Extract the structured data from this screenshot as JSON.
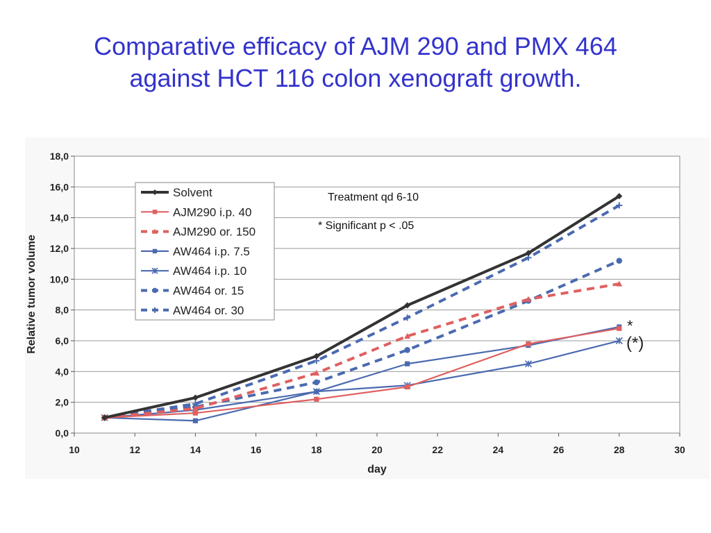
{
  "slide": {
    "title_line1": "Comparative efficacy of AJM 290 and PMX 464",
    "title_line2": "against HCT 116 colon xenograft growth."
  },
  "annotations": {
    "treatment": "Treatment qd 6-10",
    "significance": "* Significant p < .05",
    "star_upper": "*",
    "star_lower": "(*)"
  },
  "chart_data": {
    "type": "line",
    "xlabel": "day",
    "ylabel": "Relative tumor volume",
    "xlim": [
      10,
      30
    ],
    "ylim": [
      0,
      18
    ],
    "xticks": [
      10,
      12,
      14,
      16,
      18,
      20,
      22,
      24,
      26,
      28,
      30
    ],
    "xtick_labels": [
      "10",
      "12",
      "14",
      "16",
      "18",
      "20",
      "22",
      "24",
      "26",
      "28",
      "30"
    ],
    "yticks": [
      0,
      2,
      4,
      6,
      8,
      10,
      12,
      14,
      16,
      18
    ],
    "ytick_labels": [
      "0,0",
      "2,0",
      "4,0",
      "6,0",
      "8,0",
      "10,0",
      "12,0",
      "14,0",
      "16,0",
      "18,0"
    ],
    "grid": "horizontal",
    "legend_position": "top-left",
    "series": [
      {
        "name": "Solvent",
        "color": "#333333",
        "dash": "solid",
        "marker": "diamond",
        "thick": true,
        "x": [
          11,
          14,
          18,
          21,
          25,
          28
        ],
        "y": [
          1.0,
          2.3,
          5.0,
          8.3,
          11.7,
          15.4
        ]
      },
      {
        "name": "AJM290 i.p. 40",
        "color": "#e06060",
        "dash": "solid",
        "marker": "square",
        "thick": false,
        "x": [
          11,
          14,
          18,
          21,
          25,
          28
        ],
        "y": [
          1.0,
          1.3,
          2.2,
          3.0,
          5.8,
          6.8
        ]
      },
      {
        "name": "AJM290 or. 150",
        "color": "#e06060",
        "dash": "dashed",
        "marker": "triangle",
        "thick": false,
        "x": [
          11,
          14,
          18,
          21,
          25,
          28
        ],
        "y": [
          1.0,
          1.6,
          3.9,
          6.3,
          8.7,
          9.7
        ]
      },
      {
        "name": "AW464 i.p. 7.5",
        "color": "#4a6ab0",
        "dash": "solid",
        "marker": "square",
        "thick": false,
        "x": [
          11,
          14,
          18,
          21,
          25,
          28
        ],
        "y": [
          1.0,
          0.8,
          2.7,
          4.5,
          5.7,
          6.9
        ]
      },
      {
        "name": "AW464 i.p. 10",
        "color": "#4a6ab0",
        "dash": "solid",
        "marker": "star",
        "thick": false,
        "x": [
          11,
          14,
          18,
          21,
          25,
          28
        ],
        "y": [
          1.0,
          1.5,
          2.7,
          3.1,
          4.5,
          6.0
        ]
      },
      {
        "name": "AW464 or. 15",
        "color": "#4a6ab0",
        "dash": "dashed",
        "marker": "circle",
        "thick": false,
        "x": [
          11,
          14,
          18,
          21,
          25,
          28
        ],
        "y": [
          1.0,
          1.7,
          3.3,
          5.4,
          8.6,
          11.2
        ]
      },
      {
        "name": "AW464 or. 30",
        "color": "#4a6ab0",
        "dash": "dashed",
        "marker": "plus",
        "thick": false,
        "x": [
          11,
          14,
          18,
          21,
          25,
          28
        ],
        "y": [
          1.0,
          1.9,
          4.7,
          7.5,
          11.4,
          14.8
        ]
      }
    ]
  }
}
